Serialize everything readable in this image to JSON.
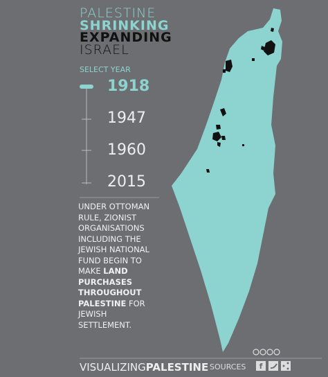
{
  "header": {
    "title_lines": [
      {
        "text": "PALESTINE",
        "style": "teal-light"
      },
      {
        "text": "SHRINKING",
        "style": "teal-bold"
      },
      {
        "text": "EXPANDING",
        "style": "black-bold"
      },
      {
        "text": "ISRAEL",
        "style": "black-light"
      }
    ]
  },
  "select_year": {
    "label": "SELECT YEAR",
    "years": [
      "1918",
      "1947",
      "1960",
      "2015"
    ],
    "selected": 0
  },
  "description": [
    {
      "text": "UNDER OTTOMAN RULE, ZIONIST ORGANISATIONS INCLUDING THE JEWISH NATIONAL FUND BEGIN TO MAKE ",
      "bold": false
    },
    {
      "text": "LAND PURCHASES THROUGHOUT PALESTINE",
      "bold": true
    },
    {
      "text": " FOR JEWISH SETTLEMENT.",
      "bold": false
    }
  ],
  "footer": {
    "brand_light": "VISUALIZING",
    "brand_bold": "PALESTINE",
    "sources": "SOURCES"
  }
}
